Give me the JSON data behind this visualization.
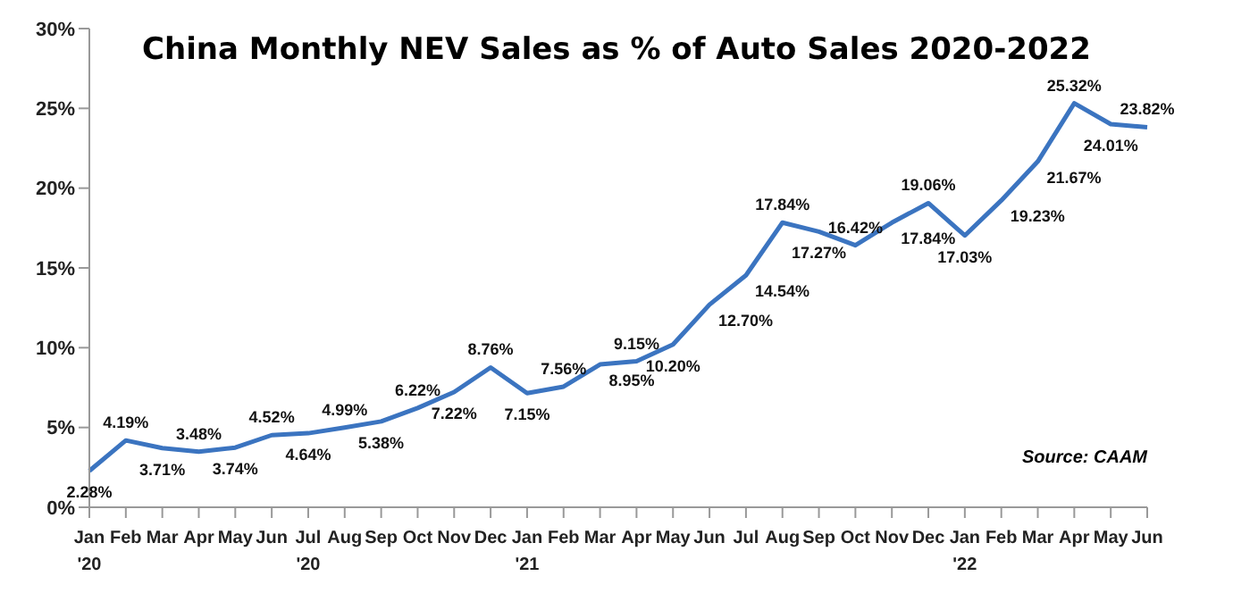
{
  "chart_data": {
    "type": "line",
    "title": "China Monthly NEV Sales as % of Auto Sales 2020-2022",
    "categories": [
      "Jan\n'20",
      "Feb",
      "Mar",
      "Apr",
      "May",
      "Jun",
      "Jul\n'20",
      "Aug",
      "Sep",
      "Oct",
      "Nov",
      "Dec",
      "Jan\n'21",
      "Feb",
      "Mar",
      "Apr",
      "May",
      "Jun",
      "Jul",
      "Aug",
      "Sep",
      "Oct",
      "Nov",
      "Dec",
      "Jan\n'22",
      "Feb",
      "Mar",
      "Apr",
      "May",
      "Jun"
    ],
    "series": [
      {
        "color": "#3b74c0",
        "values": [
          2.28,
          4.19,
          3.71,
          3.48,
          3.74,
          4.52,
          4.64,
          4.99,
          5.38,
          6.22,
          7.22,
          8.76,
          7.15,
          7.56,
          8.95,
          9.15,
          10.2,
          12.7,
          14.54,
          17.84,
          17.27,
          16.42,
          17.84,
          19.06,
          17.03,
          19.23,
          21.67,
          25.32,
          24.01,
          23.82
        ],
        "value_labels": [
          "2.28%",
          "4.19%",
          "3.71%",
          "3.48%",
          "3.74%",
          "4.52%",
          "4.64%",
          "4.99%",
          "5.38%",
          "6.22%",
          "7.22%",
          "8.76%",
          "7.15%",
          "7.56%",
          "8.95%",
          "9.15%",
          "10.20%",
          "12.70%",
          "14.54%",
          "17.84%",
          "17.27%",
          "16.42%",
          "17.84%",
          "19.06%",
          "17.03%",
          "19.23%",
          "21.67%",
          "25.32%",
          "24.01%",
          "23.82%"
        ]
      }
    ],
    "ylim": [
      0,
      30
    ],
    "yticks": [
      {
        "value": 0,
        "label": "0%"
      },
      {
        "value": 5,
        "label": "5%"
      },
      {
        "value": 10,
        "label": "10%"
      },
      {
        "value": 15,
        "label": "15%"
      },
      {
        "value": 20,
        "label": "20%"
      },
      {
        "value": 25,
        "label": "25%"
      },
      {
        "value": 30,
        "label": "30%"
      }
    ],
    "grid": false,
    "legend": false,
    "marker": "none",
    "line_style": "solid",
    "annotations": [
      "Source: CAAM"
    ]
  }
}
